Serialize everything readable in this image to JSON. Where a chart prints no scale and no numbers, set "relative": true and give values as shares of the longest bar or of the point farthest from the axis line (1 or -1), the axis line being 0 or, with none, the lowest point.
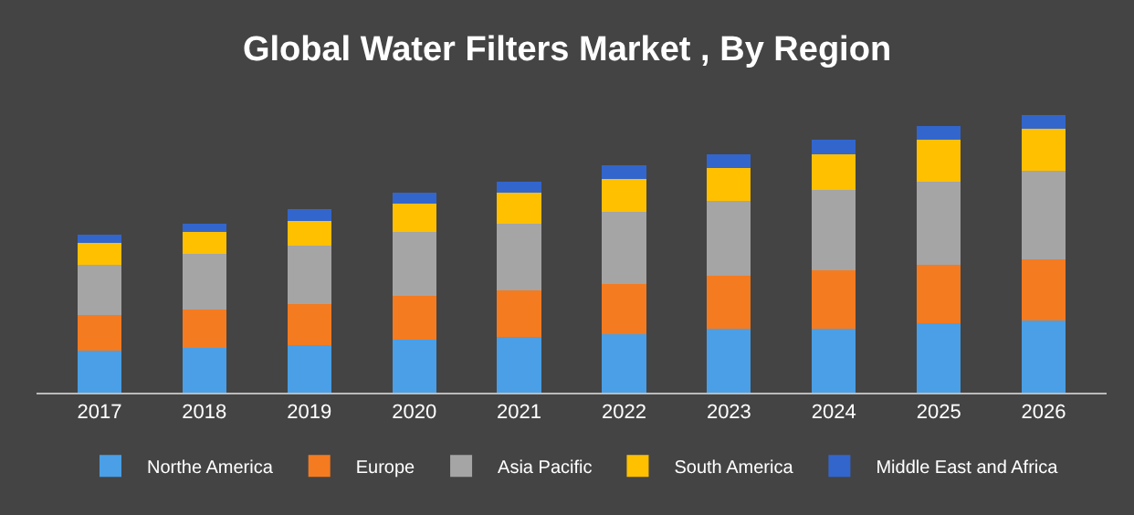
{
  "chart_data": {
    "type": "bar",
    "title": "Global Water Filters Market , By Region",
    "relative": true,
    "stacked": true,
    "legend": "bottom",
    "categories": [
      "2017",
      "2018",
      "2019",
      "2020",
      "2021",
      "2022",
      "2023",
      "2024",
      "2025",
      "2026"
    ],
    "series": [
      {
        "name": "Northe America",
        "color": "#4a9fe6",
        "values": [
          0.15,
          0.16,
          0.17,
          0.19,
          0.2,
          0.21,
          0.23,
          0.23,
          0.25,
          0.26
        ]
      },
      {
        "name": "Europe",
        "color": "#f47b20",
        "values": [
          0.13,
          0.14,
          0.15,
          0.16,
          0.17,
          0.18,
          0.19,
          0.21,
          0.21,
          0.22
        ]
      },
      {
        "name": "Asia Pacific",
        "color": "#a5a5a5",
        "values": [
          0.18,
          0.2,
          0.21,
          0.23,
          0.24,
          0.26,
          0.27,
          0.29,
          0.3,
          0.32
        ]
      },
      {
        "name": "South America",
        "color": "#ffc000",
        "values": [
          0.08,
          0.08,
          0.09,
          0.1,
          0.11,
          0.12,
          0.12,
          0.13,
          0.15,
          0.15
        ]
      },
      {
        "name": "Middle East and Africa",
        "color": "#3366cc",
        "values": [
          0.03,
          0.03,
          0.04,
          0.04,
          0.04,
          0.05,
          0.05,
          0.05,
          0.05,
          0.05
        ]
      }
    ]
  }
}
